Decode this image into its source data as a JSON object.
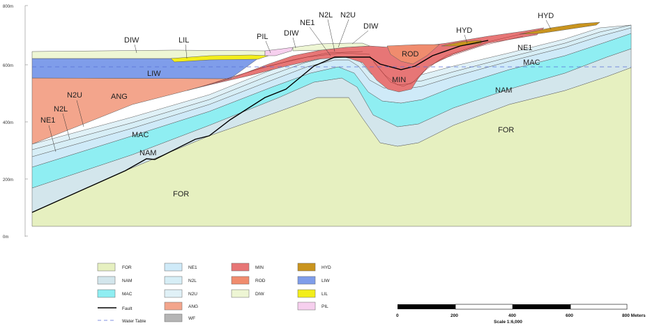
{
  "colors": {
    "FOR": "#e6f0c0",
    "NAM": "#d3e6ec",
    "MAC": "#8feef2",
    "NE1": "#cfeaf8",
    "N2L": "#d7eef6",
    "N2U": "#e0f1f7",
    "ANG": "#f3a58c",
    "WF": "#b5b5b5",
    "MIN": "#e77676",
    "ROD": "#f08c6e",
    "DIW": "#eef6d4",
    "HYD": "#c9941e",
    "LIW": "#7f9dea",
    "LIL": "#f3ee1a",
    "PIL": "#f6cfee",
    "fault": "#000000",
    "water_table": "#5a6fd8"
  },
  "y_axis": {
    "ticks": [
      "800m",
      "600m",
      "400m",
      "200m",
      "0m"
    ]
  },
  "section_labels": {
    "DIW_left": "DIW",
    "LIL": "LIL",
    "PIL": "PIL",
    "DIW_mid": "DIW",
    "NE1_top": "NE1",
    "N2L_top": "N2L",
    "N2U_top": "N2U",
    "DIW_right": "DIW",
    "HYD_mid": "HYD",
    "HYD_right": "HYD",
    "ROD": "ROD",
    "LIW": "LIW",
    "ANG": "ANG",
    "N2U_left": "N2U",
    "N2L_left": "N2L",
    "NE1_left": "NE1",
    "MAC_left": "MAC",
    "NAM_left": "NAM",
    "FOR_left": "FOR",
    "MIN": "MIN",
    "NE1_right": "NE1",
    "MAC_right": "MAC",
    "NAM_right": "NAM",
    "FOR_right": "FOR"
  },
  "legend": {
    "FOR": "FOR",
    "NAM": "NAM",
    "MAC": "MAC",
    "fault": "Fault",
    "water_table": "Water Table",
    "NE1": "NE1",
    "N2L": "N2L",
    "N2U": "N2U",
    "ANG": "ANG",
    "WF": "WF",
    "MIN": "MIN",
    "ROD": "ROD",
    "DIW": "DIW",
    "HYD": "HYD",
    "LIW": "LIW",
    "LIL": "LIL",
    "PIL": "PIL"
  },
  "scale_bar": {
    "ticks": [
      "0",
      "200",
      "400",
      "600",
      "800 Meters"
    ],
    "caption": "Scale 1:6,000"
  }
}
